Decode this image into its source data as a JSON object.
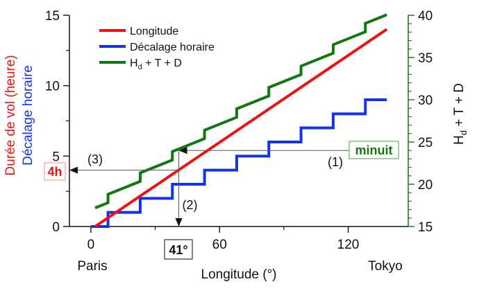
{
  "chart_data": {
    "type": "line",
    "xlabel": "Longitude (°)",
    "x_ticks": [
      0,
      60,
      120
    ],
    "xlim": [
      -10,
      148
    ],
    "ylabel_left_1": "Durée de vol (heure)",
    "ylabel_left_2": "Décalage horaire",
    "ylim_left": [
      0,
      15
    ],
    "y_ticks_left": [
      0,
      5,
      10,
      15
    ],
    "ylabel_right": "H_d + T + D",
    "ylim_right": [
      15,
      40
    ],
    "y_ticks_right": [
      15,
      20,
      25,
      30,
      35,
      40
    ],
    "legend_position": "top-left",
    "series": [
      {
        "name": "Longitude",
        "color": "#ee1111",
        "axis": "left",
        "style": "line",
        "x": [
          2,
          138
        ],
        "y": [
          0,
          14
        ]
      },
      {
        "name": "Décalage horaire",
        "color": "#1133ee",
        "axis": "left",
        "style": "step",
        "step_edges": [
          8,
          23,
          38,
          53,
          68,
          83,
          98,
          113,
          128
        ],
        "x_start": 0,
        "x_end": 138,
        "levels": [
          0,
          1,
          2,
          3,
          4,
          5,
          6,
          7,
          8,
          9
        ]
      },
      {
        "name": "H_d + T + D",
        "color": "#117711",
        "axis": "right",
        "style": "sawtooth",
        "x_start": 2,
        "x_end": 138,
        "step_edges": [
          8,
          23,
          38,
          53,
          68,
          83,
          98,
          113,
          128
        ],
        "y_start": 17.2,
        "slope_per_degree": 0.1019,
        "jump": 1
      }
    ],
    "annotations": {
      "label_4h": "4h",
      "label_41": "41°",
      "label_minuit": "minuit",
      "label_1": "(1)",
      "label_2": "(2)",
      "label_3": "(3)",
      "label_paris": "Paris",
      "label_tokyo": "Tokyo",
      "value_4h": 4,
      "value_41": 41,
      "value_minuit": 24
    },
    "colors": {
      "red": "#ee1111",
      "blue": "#1133ee",
      "green": "#117711",
      "box_red": "#ff9999",
      "box_green": "#66aa66"
    }
  }
}
